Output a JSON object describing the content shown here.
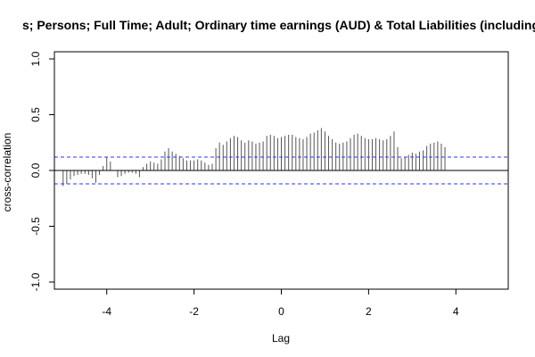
{
  "chart_data": {
    "type": "bar",
    "title": "s; Persons; Full Time; Adult; Ordinary time earnings (AUD) & Total Liabilities (including",
    "xlabel": "Lag",
    "ylabel": "cross-correlation",
    "xlim": [
      -5.2,
      5.2
    ],
    "ylim": [
      -1.0,
      1.0
    ],
    "x_ticks": [
      -4,
      -2,
      0,
      2,
      4
    ],
    "x_tick_labels": [
      "-4",
      "-2",
      "0",
      "2",
      "4"
    ],
    "y_ticks": [
      -1.0,
      -0.5,
      0.0,
      0.5,
      1.0
    ],
    "y_tick_labels": [
      "-1.0",
      "-0.5",
      "0.0",
      "0.5",
      "1.0"
    ],
    "grid": false,
    "lag_step": 0.0833333,
    "confidence_bounds": [
      0.12,
      -0.12
    ],
    "confidence_color": "#3333ff",
    "bar_color": "#555555",
    "series": [
      {
        "x_start": -5.0,
        "values": [
          -0.14,
          -0.12,
          -0.08,
          -0.05,
          -0.04,
          -0.03,
          -0.03,
          -0.04,
          -0.07,
          -0.11,
          -0.04,
          0.04,
          0.12,
          0.08,
          0.0,
          -0.06,
          -0.05,
          -0.03,
          -0.02,
          -0.02,
          -0.03,
          -0.06,
          0.03,
          0.06,
          0.08,
          0.07,
          0.06,
          0.1,
          0.17,
          0.2,
          0.17,
          0.15,
          0.13,
          0.11,
          0.09,
          0.09,
          0.09,
          0.1,
          0.09,
          0.07,
          0.05,
          0.06,
          0.2,
          0.25,
          0.23,
          0.26,
          0.29,
          0.31,
          0.3,
          0.27,
          0.25,
          0.27,
          0.26,
          0.24,
          0.25,
          0.26,
          0.31,
          0.32,
          0.31,
          0.29,
          0.3,
          0.31,
          0.32,
          0.32,
          0.3,
          0.29,
          0.28,
          0.3,
          0.33,
          0.34,
          0.36,
          0.38,
          0.35,
          0.31,
          0.28,
          0.25,
          0.24,
          0.25,
          0.26,
          0.29,
          0.32,
          0.33,
          0.31,
          0.29,
          0.28,
          0.28,
          0.29,
          0.28,
          0.27,
          0.28,
          0.31,
          0.35,
          0.21,
          0.11,
          0.12,
          0.14,
          0.16,
          0.15,
          0.17,
          0.18,
          0.22,
          0.24,
          0.25,
          0.26,
          0.24,
          0.21
        ]
      }
    ]
  }
}
